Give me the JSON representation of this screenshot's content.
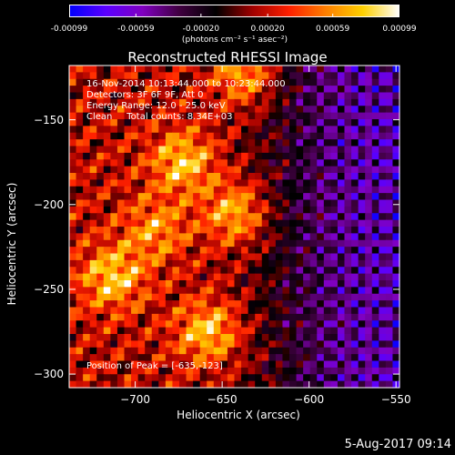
{
  "chart_data": {
    "type": "heatmap",
    "title": "Reconstructed RHESSI Image",
    "xlabel": "Heliocentric X (arcsec)",
    "ylabel": "Heliocentric Y (arcsec)",
    "xlim": [
      -738,
      -548
    ],
    "ylim": [
      -308,
      -118
    ],
    "x_ticks": [
      -700,
      -650,
      -600,
      -550
    ],
    "y_ticks": [
      -150,
      -200,
      -250,
      -300
    ],
    "x_tick_labels": [
      "−700",
      "−650",
      "−600",
      "−550"
    ],
    "y_tick_labels": [
      "−150",
      "−200",
      "−250",
      "−300"
    ],
    "colorbar": {
      "range": [
        -0.00099,
        0.00099
      ],
      "ticks": [
        -0.00099,
        -0.00059,
        -0.0002,
        0.0002,
        0.00059,
        0.00099
      ],
      "tick_labels": [
        "-0.00099",
        "-0.00059",
        "-0.00020",
        "0.00020",
        "0.00059",
        "0.00099"
      ],
      "unit": "(photons cm⁻² s⁻¹ asec⁻²)",
      "colors": [
        "#0000ff",
        "#5a00ff",
        "#8000c0",
        "#400040",
        "#000000",
        "#a00000",
        "#ff2000",
        "#ff8000",
        "#ffd000",
        "#ffffff"
      ]
    },
    "annotations": [
      "16-Nov-2014 10:13:44.000 to 10:23:44.000",
      "Detectors: 3F 6F 9F, Att 0",
      "Energy Range: 12.0 - 25.0 keV",
      "Clean     Total counts: 8.34E+03"
    ],
    "peak_label": "Position of Peak = [-635,-123]",
    "peak_position": [
      -635,
      -123
    ],
    "bright_sources": [
      {
        "x": -672,
        "y": -175,
        "value": 0.00085
      },
      {
        "x": -641,
        "y": -205,
        "value": 0.00095
      },
      {
        "x": -713,
        "y": -243,
        "value": 0.0008
      },
      {
        "x": -657,
        "y": -275,
        "value": 0.0009
      },
      {
        "x": -635,
        "y": -123,
        "value": 0.00099
      },
      {
        "x": -688,
        "y": -215,
        "value": 0.0006
      }
    ]
  },
  "footer": {
    "date": "5-Aug-2017 09:14"
  }
}
